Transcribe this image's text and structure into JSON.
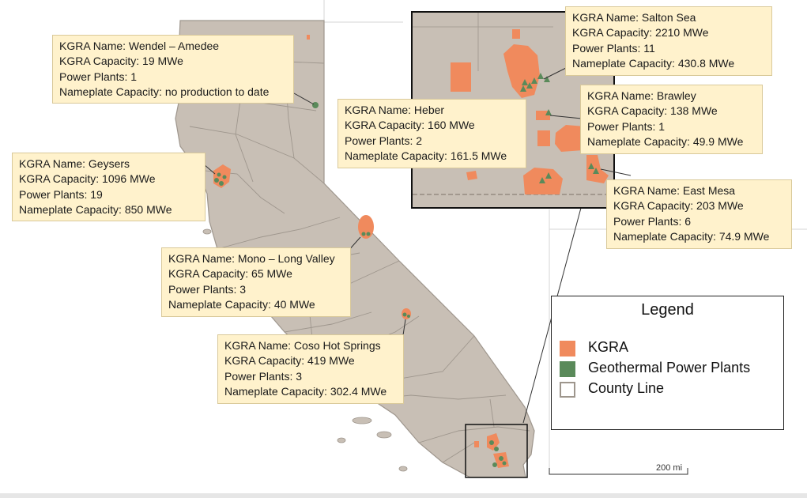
{
  "colors": {
    "kgra": "#f08a5d",
    "plant": "#5a8a5a",
    "land": "#c8bfb5",
    "county_line": "#9e968d",
    "callout_bg": "#fff2cc",
    "ocean": "#ffffff"
  },
  "callouts": {
    "wendel": {
      "name": "KGRA Name: Wendel – Amedee",
      "capacity": "KGRA Capacity: 19 MWe",
      "plants": "Power Plants: 1",
      "nameplate": "Nameplate Capacity: no production to date"
    },
    "geysers": {
      "name": "KGRA Name: Geysers",
      "capacity": "KGRA Capacity: 1096 MWe",
      "plants": "Power Plants: 19",
      "nameplate": "Nameplate Capacity: 850 MWe"
    },
    "mono": {
      "name": "KGRA Name: Mono – Long Valley",
      "capacity": "KGRA Capacity: 65 MWe",
      "plants": "Power Plants: 3",
      "nameplate": "Nameplate Capacity: 40 MWe"
    },
    "coso": {
      "name": "KGRA Name: Coso Hot Springs",
      "capacity": "KGRA Capacity: 419 MWe",
      "plants": "Power Plants: 3",
      "nameplate": "Nameplate Capacity: 302.4 MWe"
    },
    "heber": {
      "name": "KGRA Name: Heber",
      "capacity": "KGRA Capacity: 160 MWe",
      "plants": "Power Plants: 2",
      "nameplate": "Nameplate Capacity: 161.5 MWe"
    },
    "salton": {
      "name": "KGRA Name: Salton Sea",
      "capacity": "KGRA Capacity: 2210 MWe",
      "plants": "Power Plants: 11",
      "nameplate": "Nameplate Capacity: 430.8 MWe"
    },
    "brawley": {
      "name": "KGRA Name:  Brawley",
      "capacity": "KGRA Capacity: 138 MWe",
      "plants": "Power Plants: 1",
      "nameplate": "Nameplate Capacity: 49.9 MWe"
    },
    "eastmesa": {
      "name": "KGRA Name: East Mesa",
      "capacity": "KGRA Capacity: 203 MWe",
      "plants": "Power Plants: 6",
      "nameplate": "Nameplate Capacity: 74.9 MWe"
    }
  },
  "legend": {
    "title": "Legend",
    "items": [
      {
        "label": "KGRA",
        "swatch": "kgra"
      },
      {
        "label": "Geothermal Power Plants",
        "swatch": "plant"
      },
      {
        "label": "County Line",
        "swatch": "county_line"
      }
    ]
  },
  "scale": {
    "label": "200 mi"
  }
}
